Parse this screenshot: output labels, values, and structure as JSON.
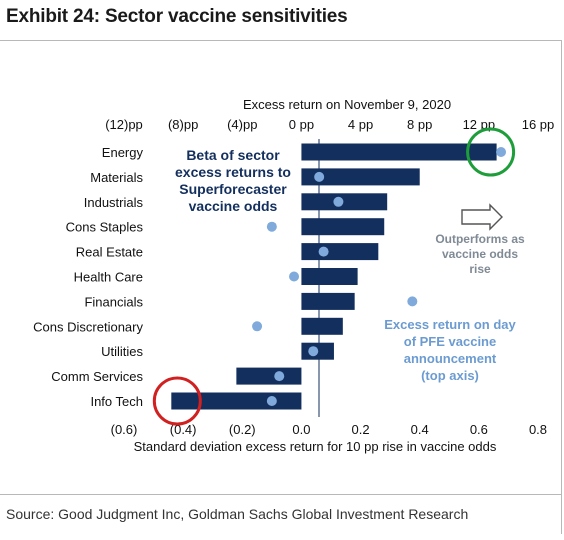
{
  "exhibit_title": "Exhibit 24: Sector vaccine sensitivities",
  "source": "Source: Good Judgment Inc, Goldman Sachs Global Investment Research",
  "chart_data": {
    "type": "bar",
    "orientation": "horizontal",
    "categories": [
      "Energy",
      "Materials",
      "Industrials",
      "Cons Staples",
      "Real Estate",
      "Health Care",
      "Financials",
      "Cons Discretionary",
      "Utilities",
      "Comm Services",
      "Info Tech"
    ],
    "series": [
      {
        "name": "Beta of sector excess returns to Superforecaster vaccine odds",
        "axis": "bottom",
        "values": [
          0.66,
          0.4,
          0.29,
          0.28,
          0.26,
          0.19,
          0.18,
          0.14,
          0.11,
          -0.22,
          -0.44
        ],
        "color": "#132f5e"
      },
      {
        "name": "Excess return on day of PFE vaccine announcement (top axis)",
        "axis": "top",
        "values": [
          13.5,
          1.2,
          2.5,
          -2.0,
          1.5,
          -0.5,
          7.5,
          -3.0,
          0.8,
          -1.5,
          -2.0
        ],
        "color": "#7faadb"
      }
    ],
    "bottom_axis": {
      "label": "Standard deviation excess return for 10 pp rise in vaccine odds",
      "ticks": [
        "(0.6)",
        "(0.4)",
        "(0.2)",
        "0.0",
        "0.2",
        "0.4",
        "0.6",
        "0.8"
      ],
      "tick_values": [
        -0.6,
        -0.4,
        -0.2,
        0.0,
        0.2,
        0.4,
        0.6,
        0.8
      ],
      "range": [
        -0.6,
        0.8
      ]
    },
    "top_axis": {
      "label": "Excess return on November 9, 2020",
      "ticks": [
        "(12)pp",
        "(8)pp",
        "(4)pp",
        "0 pp",
        "4 pp",
        "8 pp",
        "12 pp",
        "16 pp"
      ],
      "tick_values": [
        -12,
        -8,
        -4,
        0,
        4,
        8,
        12,
        16
      ],
      "range": [
        -12,
        16
      ]
    },
    "annotations": {
      "beta_label": [
        "Beta of sector",
        "excess returns to",
        "Superforecaster",
        "vaccine odds"
      ],
      "outperforms": [
        "Outperforms as",
        "vaccine odds",
        "rise"
      ],
      "dot_label": [
        "Excess return on day",
        "of PFE vaccine",
        "announcement",
        "(top axis)"
      ]
    },
    "highlights": [
      {
        "category": "Energy",
        "color": "#1e9e3a"
      },
      {
        "category": "Info Tech",
        "color": "#d0201f"
      }
    ]
  }
}
